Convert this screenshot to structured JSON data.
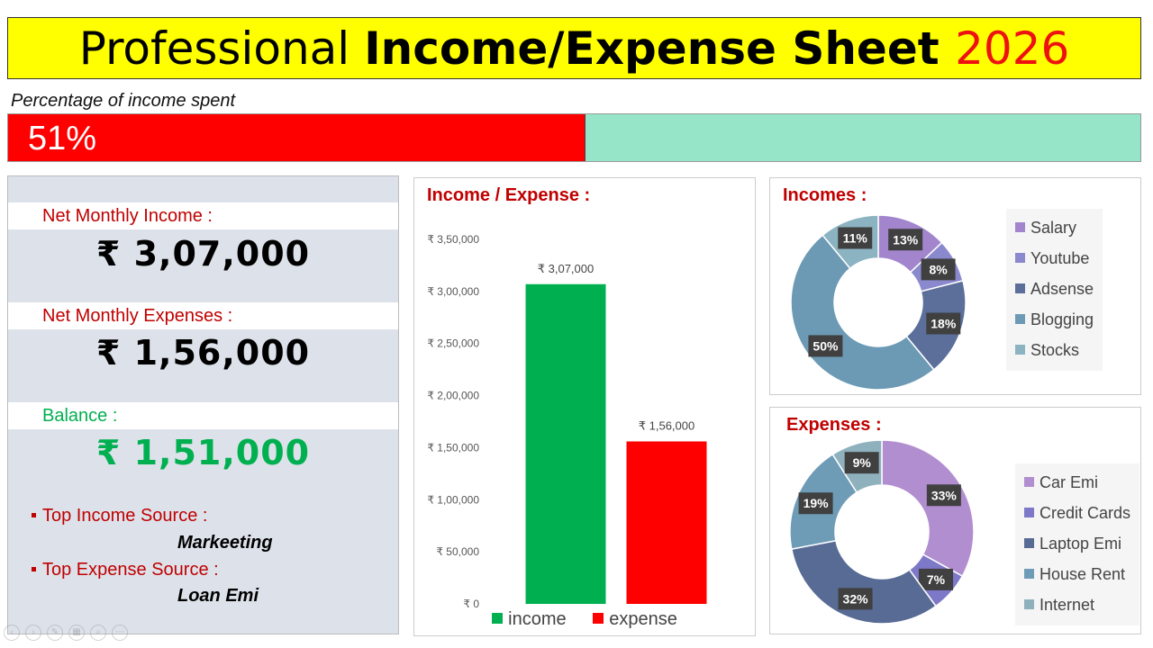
{
  "title": {
    "part1": "Professional ",
    "part2": "Income/Expense Sheet ",
    "year": "2026"
  },
  "percent_spent": {
    "label": "Percentage of income spent",
    "text": "51%",
    "value": 0.51
  },
  "summary": {
    "income_label": "Net Monthly Income :",
    "income_value": "₹ 3,07,000",
    "expense_label": "Net Monthly Expenses :",
    "expense_value": "₹ 1,56,000",
    "balance_label": "Balance :",
    "balance_value": "₹ 1,51,000",
    "top_income_label": "Top Income Source :",
    "top_income_value": "Markeeting",
    "top_expense_label": "Top Expense Source :",
    "top_expense_value": "Loan Emi"
  },
  "colors": {
    "income": "#00b050",
    "expense": "#ff0000",
    "title_red": "#c00000",
    "progress_track": "#96e5c8"
  },
  "chart_data": [
    {
      "type": "bar",
      "title": "Income / Expense :",
      "categories": [
        "income",
        "expense"
      ],
      "values": [
        307000,
        156000
      ],
      "value_labels": [
        "₹ 3,07,000",
        "₹ 1,56,000"
      ],
      "colors": [
        "#00b050",
        "#ff0000"
      ],
      "ylim": [
        0,
        350000
      ],
      "yticks": [
        0,
        50000,
        100000,
        150000,
        200000,
        250000,
        300000,
        350000
      ],
      "ytick_labels": [
        "₹ 0",
        "₹ 50,000",
        "₹ 1,00,000",
        "₹ 1,50,000",
        "₹ 2,00,000",
        "₹ 2,50,000",
        "₹ 3,00,000",
        "₹ 3,50,000"
      ],
      "legend": [
        "income",
        "expense"
      ],
      "legend_position": "bottom",
      "grid": false
    },
    {
      "type": "pie",
      "donut": true,
      "title": "Incomes :",
      "labels": [
        "Salary",
        "Youtube",
        "Adsense",
        "Blogging",
        "Stocks"
      ],
      "values": [
        13,
        8,
        18,
        50,
        11
      ],
      "value_labels": [
        "13%",
        "8%",
        "18%",
        "50%",
        "11%"
      ],
      "colors": [
        "#a285cc",
        "#8a89cd",
        "#5b6f9a",
        "#6c9ab5",
        "#8cb3c1"
      ],
      "legend_position": "right"
    },
    {
      "type": "pie",
      "donut": true,
      "title": "Expenses :",
      "labels": [
        "Car Emi",
        "Credit Cards",
        "Laptop Emi",
        "House Rent",
        "Internet"
      ],
      "values": [
        33,
        7,
        32,
        19,
        9
      ],
      "value_labels": [
        "33%",
        "7%",
        "32%",
        "19%",
        "9%"
      ],
      "colors": [
        "#b18ed0",
        "#7d78c7",
        "#586b95",
        "#6e9cb6",
        "#8fb1bd"
      ],
      "legend_position": "right"
    }
  ]
}
